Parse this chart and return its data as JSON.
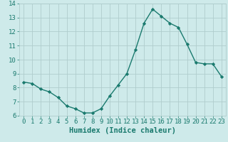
{
  "x": [
    0,
    1,
    2,
    3,
    4,
    5,
    6,
    7,
    8,
    9,
    10,
    11,
    12,
    13,
    14,
    15,
    16,
    17,
    18,
    19,
    20,
    21,
    22,
    23
  ],
  "y": [
    8.4,
    8.3,
    7.9,
    7.7,
    7.3,
    6.7,
    6.5,
    6.2,
    6.2,
    6.5,
    7.4,
    8.2,
    9.0,
    10.7,
    12.6,
    13.6,
    13.1,
    12.6,
    12.3,
    11.1,
    9.8,
    9.7,
    9.7,
    8.8
  ],
  "line_color": "#1a7a6e",
  "marker": "D",
  "marker_size": 2.2,
  "xlabel": "Humidex (Indice chaleur)",
  "xlim": [
    -0.5,
    23.5
  ],
  "ylim": [
    6.0,
    14.0
  ],
  "yticks": [
    6,
    7,
    8,
    9,
    10,
    11,
    12,
    13,
    14
  ],
  "xticks": [
    0,
    1,
    2,
    3,
    4,
    5,
    6,
    7,
    8,
    9,
    10,
    11,
    12,
    13,
    14,
    15,
    16,
    17,
    18,
    19,
    20,
    21,
    22,
    23
  ],
  "xtick_labels": [
    "0",
    "1",
    "2",
    "3",
    "4",
    "5",
    "6",
    "7",
    "8",
    "9",
    "10",
    "11",
    "12",
    "13",
    "14",
    "15",
    "16",
    "17",
    "18",
    "19",
    "20",
    "21",
    "22",
    "23"
  ],
  "background_color": "#ceeaea",
  "grid_color": "#b0cdcd",
  "tick_fontsize": 6.5,
  "xlabel_fontsize": 7.5,
  "line_width": 1.0
}
